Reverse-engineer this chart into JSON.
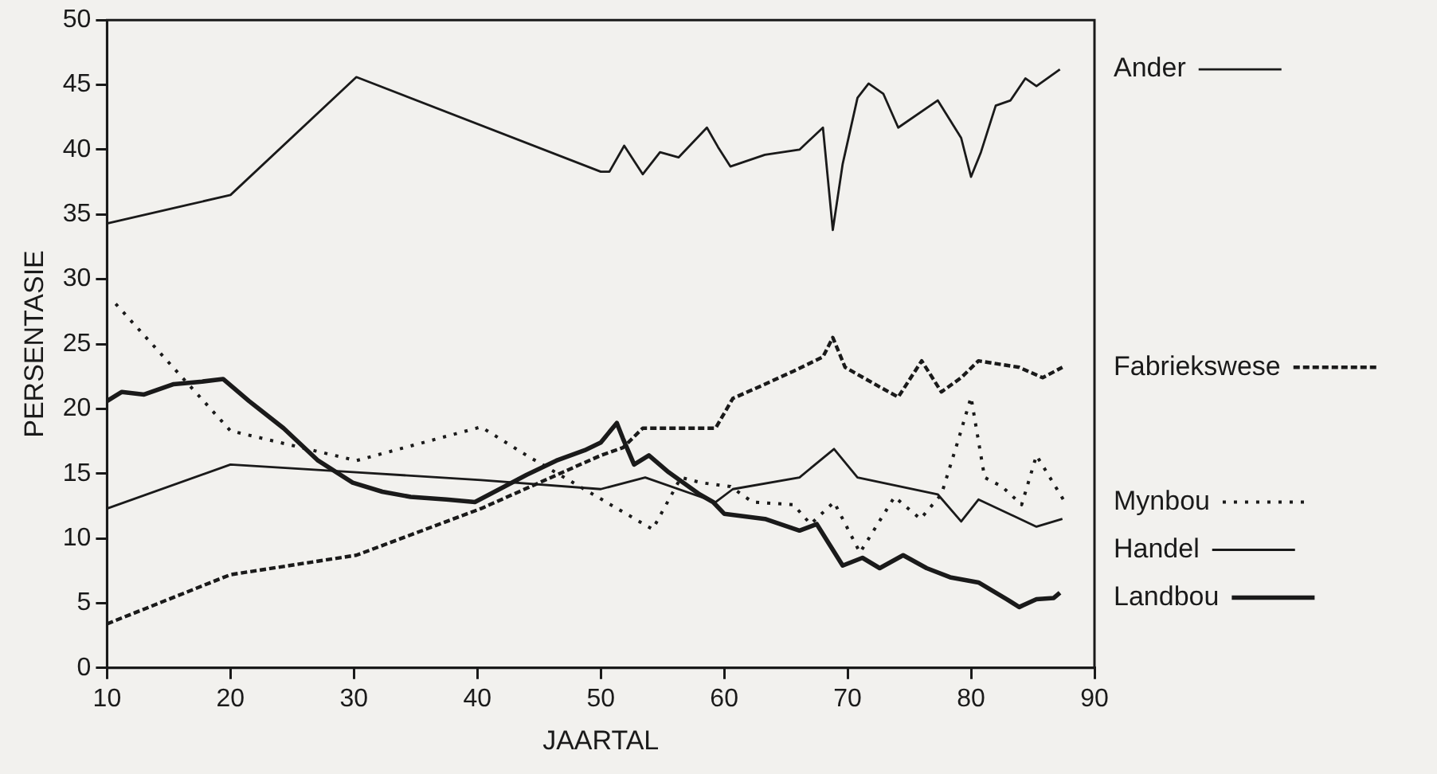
{
  "chart_data": {
    "type": "line",
    "xlabel": "JAARTAL",
    "ylabel": "PERSENTASIE",
    "xlim": [
      10,
      90
    ],
    "xticks": [
      10,
      20,
      30,
      40,
      50,
      60,
      70,
      80,
      90
    ],
    "ylim": [
      0,
      50
    ],
    "yticks": [
      0,
      5,
      10,
      15,
      20,
      25,
      30,
      35,
      40,
      45,
      50
    ],
    "grid": false,
    "legend": "right",
    "marker": "none",
    "series": [
      {
        "name": "Ander",
        "color": "#1a1a1a",
        "line_style": "solid",
        "x": [
          10,
          20,
          30.2,
          50,
          50.7,
          51.9,
          53.4,
          54.8,
          56.3,
          58.6,
          59.5,
          60.5,
          63.3,
          66.1,
          68,
          68.8,
          69.6,
          70.8,
          71.7,
          72.9,
          74.1,
          77.3,
          79.2,
          80,
          80.8,
          82,
          83.2,
          84.4,
          85.3,
          87.2
        ],
        "values": [
          34.3,
          36.5,
          45.6,
          38.3,
          38.3,
          40.3,
          38.1,
          39.8,
          39.4,
          41.7,
          40.2,
          38.7,
          39.6,
          40.0,
          41.7,
          33.8,
          38.9,
          44.0,
          45.1,
          44.3,
          41.7,
          43.8,
          40.9,
          37.9,
          39.8,
          43.4,
          43.8,
          45.5,
          44.9,
          46.2
        ]
      },
      {
        "name": "Fabriekswese",
        "color": "#1a1a1a",
        "line_style": "dashed",
        "x": [
          10,
          20,
          30.2,
          40.3,
          50,
          51.8,
          53.4,
          59.3,
          60.7,
          63.3,
          65.6,
          68,
          68.8,
          69.8,
          72.2,
          74.1,
          76,
          77.6,
          79.2,
          80.6,
          83.9,
          85.8,
          87.4
        ],
        "values": [
          3.4,
          7.2,
          8.7,
          12.3,
          16.4,
          17.0,
          18.5,
          18.5,
          20.8,
          21.9,
          22.9,
          24.0,
          25.5,
          23.2,
          21.9,
          20.9,
          23.7,
          21.3,
          22.4,
          23.7,
          23.2,
          22.4,
          23.2
        ]
      },
      {
        "name": "Mynbou",
        "color": "#1a1a1a",
        "line_style": "dotted",
        "x": [
          10.7,
          20,
          30.2,
          40.3,
          44,
          54.2,
          56.5,
          58.1,
          60.5,
          62.3,
          65.6,
          67,
          68.9,
          71,
          73.8,
          75.9,
          77.6,
          79,
          80,
          81.1,
          82.5,
          84.1,
          85.3,
          87.6
        ],
        "values": [
          28.1,
          18.3,
          16.0,
          18.6,
          16.4,
          10.7,
          14.7,
          14.3,
          14.0,
          12.8,
          12.6,
          11.1,
          12.8,
          8.9,
          13.2,
          11.5,
          13.4,
          17.7,
          20.9,
          14.7,
          14.0,
          12.6,
          16.4,
          12.8
        ]
      },
      {
        "name": "Handel",
        "color": "#1a1a1a",
        "line_style": "solid",
        "x": [
          10,
          20,
          30.2,
          40.3,
          50,
          53.6,
          59.3,
          60.7,
          66.1,
          68.9,
          70.8,
          77.3,
          79.2,
          80.6,
          85.3,
          87.4
        ],
        "values": [
          12.3,
          15.7,
          15.1,
          14.5,
          13.8,
          14.7,
          12.8,
          13.8,
          14.7,
          16.9,
          14.7,
          13.4,
          11.3,
          13.0,
          10.9,
          11.5
        ]
      },
      {
        "name": "Landbou",
        "color": "#1a1a1a",
        "line_style": "solid",
        "x": [
          10,
          11.2,
          13,
          15.4,
          17.7,
          19.4,
          21.5,
          24.3,
          27.1,
          29.9,
          32.3,
          34.6,
          37.5,
          39.8,
          42.2,
          44,
          46.4,
          48.7,
          50,
          51.3,
          51.8,
          52.7,
          53.9,
          55.5,
          58,
          59.1,
          60,
          63.3,
          66.1,
          67.5,
          69.6,
          71.2,
          72.6,
          74.5,
          76.4,
          78.3,
          80.6,
          82.9,
          83.9,
          85.3,
          86.7,
          87.2
        ],
        "values": [
          20.6,
          21.3,
          21.1,
          21.9,
          22.1,
          22.3,
          20.6,
          18.5,
          16.0,
          14.3,
          13.6,
          13.2,
          13.0,
          12.8,
          14.0,
          14.9,
          16.0,
          16.8,
          17.4,
          18.9,
          17.7,
          15.7,
          16.4,
          15.1,
          13.4,
          12.8,
          11.9,
          11.5,
          10.6,
          11.1,
          7.9,
          8.5,
          7.7,
          8.7,
          7.7,
          7.0,
          6.6,
          5.3,
          4.7,
          5.3,
          5.4,
          5.8
        ]
      }
    ]
  }
}
